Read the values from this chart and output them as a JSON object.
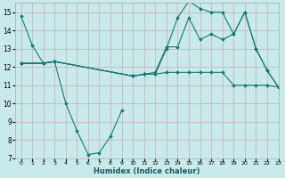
{
  "xlabel": "Humidex (Indice chaleur)",
  "background_color": "#c8eaea",
  "grid_color": "#c8b8b8",
  "line_color": "#1a7a6e",
  "xlim": [
    -0.5,
    23
  ],
  "ylim": [
    7,
    15.5
  ],
  "xticks": [
    0,
    1,
    2,
    3,
    4,
    5,
    6,
    7,
    8,
    9,
    10,
    11,
    12,
    13,
    14,
    15,
    16,
    17,
    18,
    19,
    20,
    21,
    22,
    23
  ],
  "yticks": [
    7,
    8,
    9,
    10,
    11,
    12,
    13,
    14,
    15
  ],
  "lines": [
    {
      "x": [
        0,
        1,
        2,
        3,
        4,
        5,
        6,
        7,
        8,
        9
      ],
      "y": [
        14.8,
        13.2,
        12.2,
        12.3,
        10.0,
        8.5,
        7.2,
        7.3,
        8.2,
        9.6
      ]
    },
    {
      "x": [
        0,
        2,
        3,
        10,
        11,
        12,
        13,
        14,
        15,
        16,
        17,
        18,
        19,
        20,
        21,
        22,
        23
      ],
      "y": [
        12.2,
        12.2,
        12.3,
        11.5,
        11.6,
        11.6,
        13.0,
        14.7,
        15.6,
        15.2,
        15.0,
        15.0,
        13.8,
        15.0,
        13.0,
        11.8,
        10.9
      ]
    },
    {
      "x": [
        0,
        2,
        3,
        10,
        11,
        12,
        13,
        14,
        15,
        16,
        17,
        18,
        19,
        20,
        21,
        22,
        23
      ],
      "y": [
        12.2,
        12.2,
        12.3,
        11.5,
        11.6,
        11.7,
        13.1,
        13.1,
        14.7,
        13.5,
        13.8,
        13.5,
        13.8,
        15.0,
        13.0,
        11.8,
        10.9
      ]
    },
    {
      "x": [
        0,
        2,
        3,
        10,
        11,
        12,
        13,
        14,
        15,
        16,
        17,
        18,
        19,
        20,
        21,
        22,
        23
      ],
      "y": [
        12.2,
        12.2,
        12.3,
        11.5,
        11.6,
        11.6,
        11.7,
        11.7,
        11.7,
        11.7,
        11.7,
        11.7,
        11.0,
        11.0,
        11.0,
        11.0,
        10.9
      ]
    }
  ]
}
